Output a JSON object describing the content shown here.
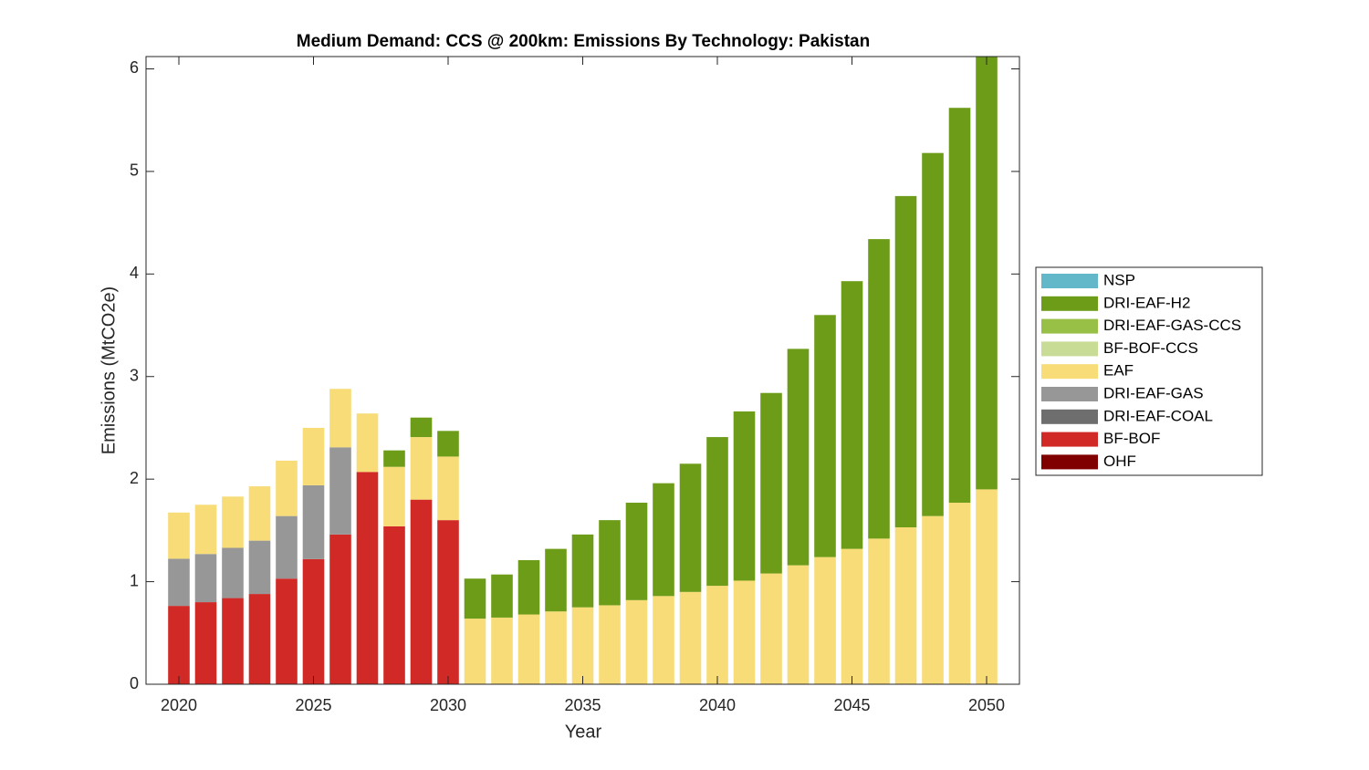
{
  "chart_data": {
    "type": "stacked-bar",
    "title": "Medium Demand: CCS @ 200km: Emissions By Technology: Pakistan",
    "x_label": "Year",
    "y_label": "Emissions (MtCO2e)",
    "x": [
      2020,
      2021,
      2022,
      2023,
      2024,
      2025,
      2026,
      2027,
      2028,
      2029,
      2030,
      2031,
      2032,
      2033,
      2034,
      2035,
      2036,
      2037,
      2038,
      2039,
      2040,
      2041,
      2042,
      2043,
      2044,
      2045,
      2046,
      2047,
      2048,
      2049,
      2050
    ],
    "xlim": [
      2018.78,
      2051.22
    ],
    "xticks": [
      2020,
      2025,
      2030,
      2035,
      2040,
      2045,
      2050
    ],
    "ylim": [
      0,
      6.12
    ],
    "yticks": [
      0,
      1,
      2,
      3,
      4,
      5,
      6
    ],
    "grid": false,
    "legend": "right",
    "series": [
      {
        "name": "NSP",
        "color": "#62b7c9",
        "values": [
          0,
          0,
          0,
          0,
          0,
          0,
          0,
          0,
          0,
          0,
          0,
          0,
          0,
          0,
          0,
          0,
          0,
          0,
          0,
          0,
          0,
          0,
          0,
          0,
          0,
          0,
          0,
          0,
          0,
          0,
          0
        ]
      },
      {
        "name": "DRI-EAF-H2",
        "color": "#6d9c18",
        "values": [
          0,
          0,
          0,
          0,
          0,
          0,
          0,
          0,
          0.16,
          0.19,
          0.25,
          0.39,
          0.42,
          0.53,
          0.61,
          0.71,
          0.83,
          0.95,
          1.1,
          1.25,
          1.45,
          1.65,
          1.76,
          2.11,
          2.36,
          2.61,
          2.92,
          3.23,
          3.54,
          3.85,
          4.25
        ]
      },
      {
        "name": "DRI-EAF-GAS-CCS",
        "color": "#98c046",
        "values": [
          0,
          0,
          0,
          0,
          0,
          0,
          0,
          0,
          0,
          0,
          0,
          0,
          0,
          0,
          0,
          0,
          0,
          0,
          0,
          0,
          0,
          0,
          0,
          0,
          0,
          0,
          0,
          0,
          0,
          0,
          0
        ]
      },
      {
        "name": "BF-BOF-CCS",
        "color": "#c8dc96",
        "values": [
          0,
          0,
          0,
          0,
          0,
          0,
          0,
          0,
          0,
          0,
          0,
          0,
          0,
          0,
          0,
          0,
          0,
          0,
          0,
          0,
          0,
          0,
          0,
          0,
          0,
          0,
          0,
          0,
          0,
          0,
          0
        ]
      },
      {
        "name": "EAF",
        "color": "#f7dc78",
        "values": [
          0.45,
          0.48,
          0.5,
          0.53,
          0.54,
          0.56,
          0.57,
          0.57,
          0.58,
          0.61,
          0.62,
          0.64,
          0.65,
          0.68,
          0.71,
          0.75,
          0.77,
          0.82,
          0.86,
          0.9,
          0.96,
          1.01,
          1.08,
          1.16,
          1.24,
          1.32,
          1.42,
          1.53,
          1.64,
          1.77,
          1.9
        ]
      },
      {
        "name": "DRI-EAF-GAS",
        "color": "#979797",
        "values": [
          0.46,
          0.47,
          0.49,
          0.52,
          0.61,
          0.72,
          0.85,
          0,
          0,
          0,
          0,
          0,
          0,
          0,
          0,
          0,
          0,
          0,
          0,
          0,
          0,
          0,
          0,
          0,
          0,
          0,
          0,
          0,
          0,
          0,
          0
        ]
      },
      {
        "name": "DRI-EAF-COAL",
        "color": "#6e6e6e",
        "values": [
          0,
          0,
          0,
          0,
          0,
          0,
          0,
          0,
          0,
          0,
          0,
          0,
          0,
          0,
          0,
          0,
          0,
          0,
          0,
          0,
          0,
          0,
          0,
          0,
          0,
          0,
          0,
          0,
          0,
          0,
          0
        ]
      },
      {
        "name": "BF-BOF",
        "color": "#d12a26",
        "values": [
          0.764,
          0.8,
          0.84,
          0.88,
          1.03,
          1.22,
          1.46,
          2.07,
          1.54,
          1.8,
          1.6,
          0,
          0,
          0,
          0,
          0,
          0,
          0,
          0,
          0,
          0,
          0,
          0,
          0,
          0,
          0,
          0,
          0,
          0,
          0,
          0
        ]
      },
      {
        "name": "OHF",
        "color": "#800000",
        "values": [
          0,
          0,
          0,
          0,
          0,
          0,
          0,
          0,
          0,
          0,
          0,
          0,
          0,
          0,
          0,
          0,
          0,
          0,
          0,
          0,
          0,
          0,
          0,
          0,
          0,
          0,
          0,
          0,
          0,
          0,
          0
        ]
      }
    ]
  }
}
